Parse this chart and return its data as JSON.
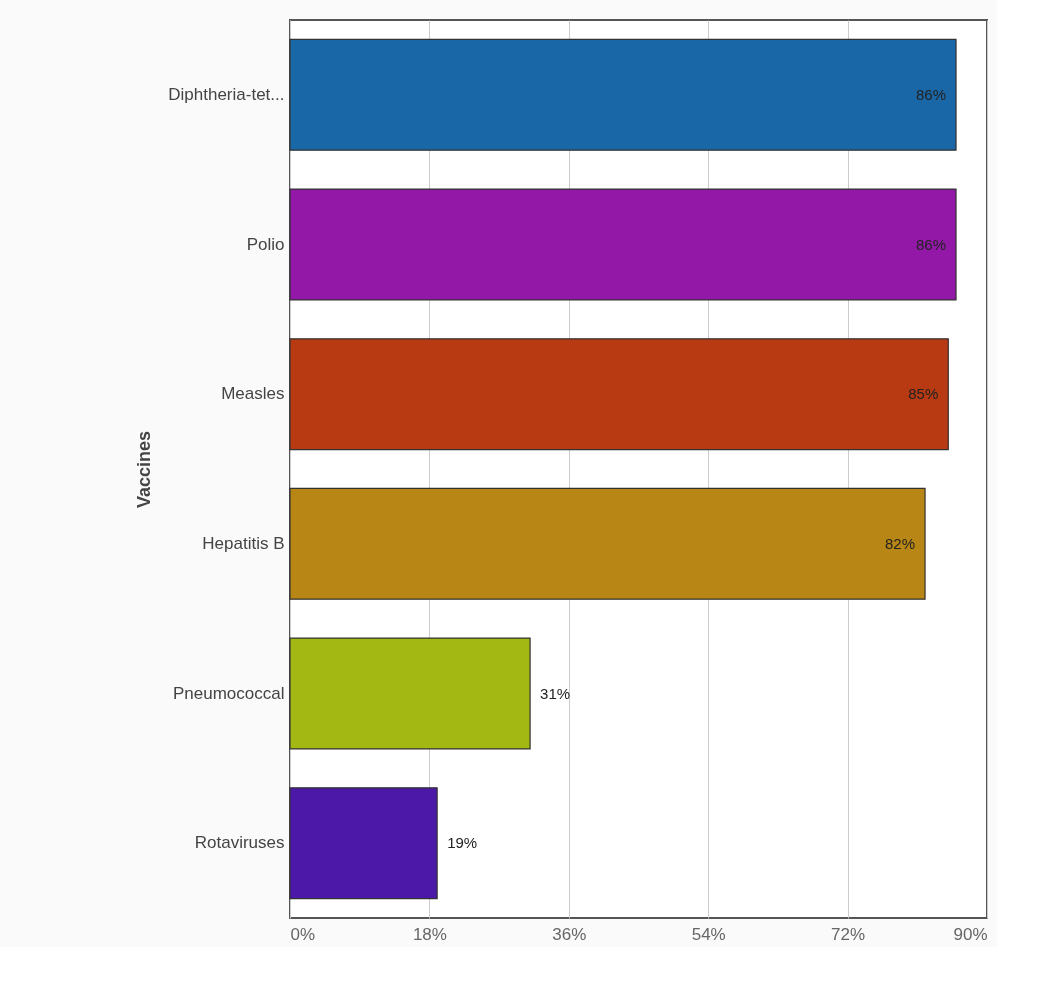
{
  "chart_data": {
    "type": "bar",
    "orientation": "horizontal",
    "ylabel": "Vaccines",
    "categories": [
      "Diphtheria-tet...",
      "Polio",
      "Measles",
      "Hepatitis B",
      "Pneumococcal",
      "Rotaviruses"
    ],
    "values": [
      86,
      86,
      85,
      82,
      31,
      19
    ],
    "colors": [
      "#1a67a8",
      "#9418a8",
      "#b83a12",
      "#b88614",
      "#a3b812",
      "#4c18a8"
    ],
    "value_labels": [
      "86%",
      "86%",
      "85%",
      "82%",
      "31%",
      "19%"
    ],
    "xlim": [
      0,
      90
    ],
    "xticks": [
      {
        "value": 0,
        "label": "0%"
      },
      {
        "value": 18,
        "label": "18%"
      },
      {
        "value": 36,
        "label": "36%"
      },
      {
        "value": 54,
        "label": "54%"
      },
      {
        "value": 72,
        "label": "72%"
      },
      {
        "value": 90,
        "label": "90%"
      }
    ],
    "grid": "x"
  }
}
